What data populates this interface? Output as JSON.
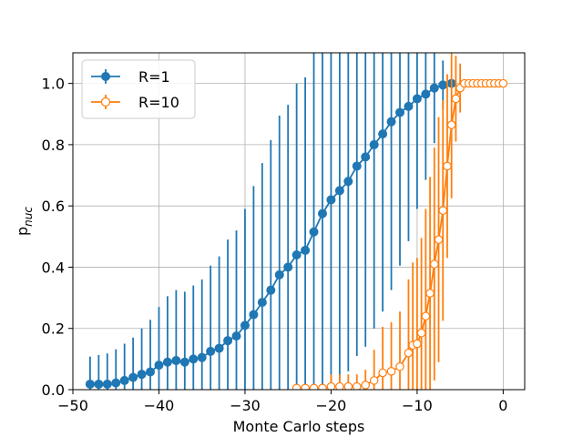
{
  "chart_data": {
    "type": "line",
    "title": "",
    "xlabel": "Monte Carlo steps",
    "ylabel": "p",
    "ylabel_sub": "nuc",
    "xlim": [
      -50,
      2.5
    ],
    "ylim": [
      0,
      1.1
    ],
    "xticks": [
      -50,
      -40,
      -30,
      -20,
      -10,
      0
    ],
    "xtick_labels": [
      "−50",
      "−40",
      "−30",
      "−20",
      "−10",
      "0"
    ],
    "yticks": [
      0.0,
      0.2,
      0.4,
      0.6,
      0.8,
      1.0
    ],
    "ytick_labels": [
      "0.0",
      "0.2",
      "0.4",
      "0.6",
      "0.8",
      "1.0"
    ],
    "grid": true,
    "legend_position": "top-left",
    "series": [
      {
        "name": "R=1",
        "color": "#1f77b4",
        "marker": "filled-circle",
        "x": [
          -48,
          -47,
          -46,
          -45,
          -44,
          -43,
          -42,
          -41,
          -40,
          -39,
          -38,
          -37,
          -36,
          -35,
          -34,
          -33,
          -32,
          -31,
          -30,
          -29,
          -28,
          -27,
          -26,
          -25,
          -24,
          -23,
          -22,
          -21,
          -20,
          -19,
          -18,
          -17,
          -16,
          -15,
          -14,
          -13,
          -12,
          -11,
          -10,
          -9,
          -8,
          -7,
          -6
        ],
        "y": [
          0.018,
          0.018,
          0.018,
          0.022,
          0.03,
          0.04,
          0.05,
          0.058,
          0.08,
          0.09,
          0.095,
          0.09,
          0.1,
          0.105,
          0.125,
          0.135,
          0.16,
          0.175,
          0.21,
          0.245,
          0.285,
          0.325,
          0.375,
          0.4,
          0.44,
          0.455,
          0.515,
          0.575,
          0.62,
          0.65,
          0.68,
          0.73,
          0.76,
          0.8,
          0.835,
          0.875,
          0.905,
          0.925,
          0.95,
          0.965,
          0.985,
          0.995,
          1.0
        ],
        "err": [
          0.09,
          0.095,
          0.1,
          0.11,
          0.12,
          0.13,
          0.15,
          0.17,
          0.19,
          0.215,
          0.23,
          0.23,
          0.24,
          0.255,
          0.28,
          0.3,
          0.33,
          0.345,
          0.38,
          0.42,
          0.455,
          0.49,
          0.52,
          0.53,
          0.56,
          0.565,
          0.585,
          0.61,
          0.62,
          0.62,
          0.62,
          0.62,
          0.62,
          0.6,
          0.58,
          0.55,
          0.5,
          0.44,
          0.36,
          0.28,
          0.18,
          0.08,
          0.0
        ]
      },
      {
        "name": "R=10",
        "color": "#ff7f0e",
        "marker": "hollow-circle",
        "x": [
          -24,
          -23,
          -22,
          -21,
          -20,
          -19,
          -18,
          -17,
          -16,
          -15,
          -14,
          -13,
          -12,
          -11,
          -10.5,
          -10,
          -9.5,
          -9,
          -8.5,
          -8,
          -7.5,
          -7,
          -6.5,
          -6,
          -5.5,
          -5,
          -4.5,
          -4,
          -3.5,
          -3,
          -2.5,
          -2,
          -1.5,
          -1,
          -0.5,
          0
        ],
        "y": [
          0.005,
          0.005,
          0.005,
          0.005,
          0.01,
          0.01,
          0.01,
          0.01,
          0.015,
          0.03,
          0.055,
          0.06,
          0.075,
          0.12,
          0.145,
          0.15,
          0.185,
          0.24,
          0.315,
          0.41,
          0.49,
          0.585,
          0.73,
          0.865,
          0.95,
          0.985,
          1.0,
          1.0,
          1.0,
          1.0,
          1.0,
          1.0,
          1.0,
          1.0,
          1.0,
          1.0
        ],
        "err": [
          0.0,
          0.0,
          0.0,
          0.0,
          0.04,
          0.04,
          0.04,
          0.04,
          0.05,
          0.1,
          0.15,
          0.16,
          0.18,
          0.24,
          0.27,
          0.28,
          0.31,
          0.35,
          0.38,
          0.38,
          0.4,
          0.36,
          0.3,
          0.24,
          0.14,
          0.08,
          0.0,
          0.0,
          0.0,
          0.0,
          0.0,
          0.0,
          0.0,
          0.0,
          0.0,
          0.0
        ]
      }
    ]
  }
}
